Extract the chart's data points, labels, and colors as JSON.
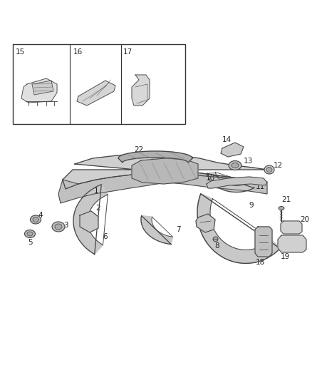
{
  "bg_color": "#ffffff",
  "line_color": "#444444",
  "label_color": "#222222",
  "fig_width": 4.38,
  "fig_height": 5.33,
  "dpi": 100
}
